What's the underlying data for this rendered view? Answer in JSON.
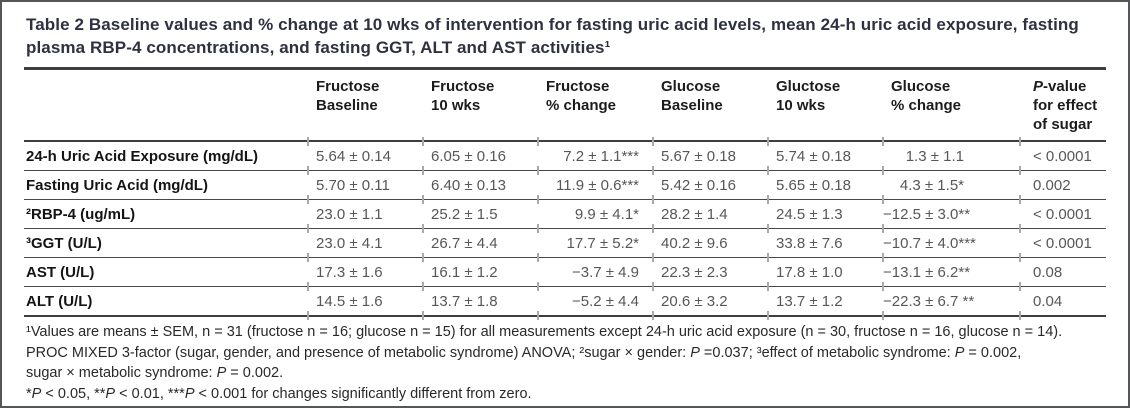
{
  "colors": {
    "frame_border": "#55565a",
    "rule": "#3e3e42",
    "title_text": "#2e3140",
    "header_text": "#1c1c1e",
    "label_text": "#141414",
    "value_text": "#57575a",
    "footnote_text": "#29292c",
    "column_tick": "#a9a9ac"
  },
  "table": {
    "title": "Table 2 Baseline values and % change at 10 wks of intervention for fasting uric acid levels, mean 24-h uric acid exposure, fasting plasma RBP-4 concentrations, and fasting GGT, ALT and AST activities¹",
    "columns": [
      [
        {
          "t": "Fructose\nBaseline"
        }
      ],
      [
        {
          "t": "Fructose\n10 wks"
        }
      ],
      [
        {
          "t": "Fructose\n% change"
        }
      ],
      [
        {
          "t": "Glucose\nBaseline"
        }
      ],
      [
        {
          "t": "Gluctose\n10 wks"
        }
      ],
      [
        {
          "t": "Glucose\n% change"
        }
      ],
      [
        {
          "t": "P",
          "i": true
        },
        {
          "t": "-value\nfor effect\nof sugar"
        }
      ]
    ],
    "rows": [
      {
        "label": "24-h Uric Acid Exposure (mg/dL)",
        "values": [
          "5.64 ± 0.14",
          "6.05 ± 0.16",
          "7.2 ± 1.1***",
          "5.67 ± 0.18",
          "5.74 ± 0.18",
          "1.3 ± 1.1",
          "< 0.0001"
        ]
      },
      {
        "label": "Fasting Uric Acid (mg/dL)",
        "values": [
          "5.70 ± 0.11",
          "6.40 ± 0.13",
          "11.9 ± 0.6***",
          "5.42 ± 0.16",
          "5.65 ± 0.18",
          "4.3 ± 1.5*",
          "0.002"
        ]
      },
      {
        "label": "²RBP-4 (ug/mL)",
        "values": [
          "23.0 ± 1.1",
          "25.2 ± 1.5",
          "9.9 ± 4.1*",
          "28.2 ± 1.4",
          "24.5 ± 1.3",
          "−12.5 ± 3.0**",
          "< 0.0001"
        ]
      },
      {
        "label": "³GGT (U/L)",
        "values": [
          "23.0 ± 4.1",
          "26.7 ± 4.4",
          "17.7 ± 5.2*",
          "40.2 ± 9.6",
          "33.8 ± 7.6",
          "−10.7 ± 4.0***",
          "< 0.0001"
        ]
      },
      {
        "label": "AST (U/L)",
        "values": [
          "17.3 ± 1.6",
          "16.1 ± 1.2",
          "−3.7 ± 4.9",
          "22.3 ± 2.3",
          "17.8 ± 1.0",
          "−13.1 ± 6.2**",
          "0.08"
        ]
      },
      {
        "label": "ALT (U/L)",
        "values": [
          "14.5 ± 1.6",
          "13.7 ± 1.8",
          "−5.2 ± 4.4",
          "20.6 ± 3.2",
          "13.7 ± 1.2",
          "−22.3 ± 6.7 **",
          "0.04"
        ]
      }
    ],
    "footnotes": [
      [
        {
          "t": "¹Values are means ± SEM, n = 31 (fructose n = 16; glucose n = 15) for all measurements except 24-h uric acid exposure (n = 30, fructose n = 16, glucose n = 14)."
        }
      ],
      [
        {
          "t": "PROC MIXED 3-factor (sugar, gender, and presence of metabolic syndrome) ANOVA; ²sugar × gender: "
        },
        {
          "t": "P",
          "i": true
        },
        {
          "t": " =0.037; ³effect of metabolic syndrome: "
        },
        {
          "t": "P",
          "i": true
        },
        {
          "t": " = 0.002,"
        }
      ],
      [
        {
          "t": "sugar × metabolic syndrome: "
        },
        {
          "t": "P",
          "i": true
        },
        {
          "t": " = 0.002."
        }
      ],
      [
        {
          "t": "*"
        },
        {
          "t": "P",
          "i": true
        },
        {
          "t": " < 0.05, **"
        },
        {
          "t": "P",
          "i": true
        },
        {
          "t": " < 0.01, ***"
        },
        {
          "t": "P",
          "i": true
        },
        {
          "t": " < 0.001 for changes significantly different from zero."
        }
      ]
    ]
  }
}
